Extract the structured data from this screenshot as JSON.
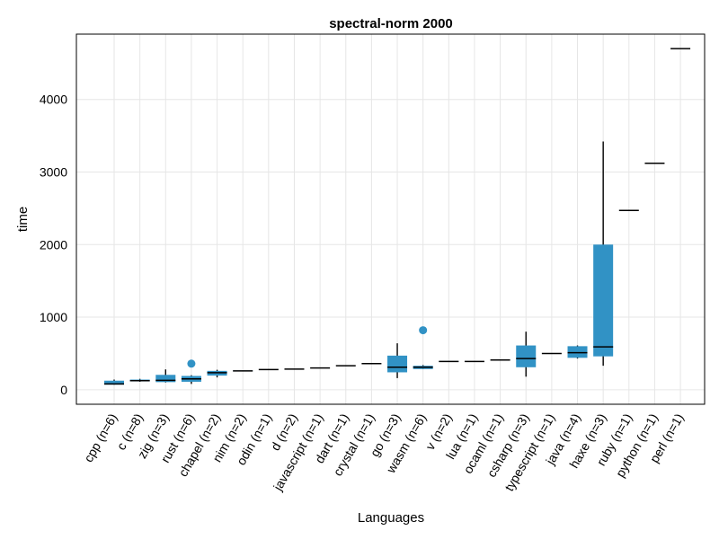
{
  "chart_data": {
    "type": "boxplot",
    "title": "spectral-norm 2000",
    "xlabel": "Languages",
    "ylabel": "time",
    "ylim": [
      -200,
      4900
    ],
    "yticks": [
      0,
      1000,
      2000,
      3000,
      4000
    ],
    "grid": true,
    "box_color": "#3192c5",
    "categories": [
      {
        "label": "cpp (n=6)",
        "min": 70,
        "q1": 70,
        "median": 80,
        "q3": 125,
        "max": 140,
        "outliers": []
      },
      {
        "label": "c (n=8)",
        "min": 110,
        "q1": 115,
        "median": 125,
        "q3": 140,
        "max": 150,
        "outliers": []
      },
      {
        "label": "zig (n=3)",
        "min": 100,
        "q1": 105,
        "median": 130,
        "q3": 205,
        "max": 280,
        "outliers": []
      },
      {
        "label": "rust (n=6)",
        "min": 80,
        "q1": 110,
        "median": 150,
        "q3": 190,
        "max": 200,
        "outliers": [
          360
        ]
      },
      {
        "label": "chapel (n=2)",
        "min": 170,
        "q1": 195,
        "median": 235,
        "q3": 260,
        "max": 275,
        "outliers": []
      },
      {
        "label": "nim (n=2)",
        "min": 255,
        "q1": 255,
        "median": 260,
        "q3": 265,
        "max": 265,
        "outliers": []
      },
      {
        "label": "odin (n=1)",
        "min": 278,
        "q1": 278,
        "median": 278,
        "q3": 278,
        "max": 278,
        "outliers": []
      },
      {
        "label": "d (n=2)",
        "min": 282,
        "q1": 282,
        "median": 285,
        "q3": 288,
        "max": 288,
        "outliers": []
      },
      {
        "label": "javascript (n=1)",
        "min": 300,
        "q1": 300,
        "median": 300,
        "q3": 300,
        "max": 300,
        "outliers": []
      },
      {
        "label": "dart (n=1)",
        "min": 330,
        "q1": 330,
        "median": 330,
        "q3": 330,
        "max": 330,
        "outliers": []
      },
      {
        "label": "crystal (n=1)",
        "min": 360,
        "q1": 360,
        "median": 360,
        "q3": 360,
        "max": 360,
        "outliers": []
      },
      {
        "label": "go (n=3)",
        "min": 160,
        "q1": 240,
        "median": 310,
        "q3": 470,
        "max": 640,
        "outliers": []
      },
      {
        "label": "wasm (n=6)",
        "min": 285,
        "q1": 285,
        "median": 310,
        "q3": 330,
        "max": 340,
        "outliers": [
          820
        ]
      },
      {
        "label": "v (n=2)",
        "min": 385,
        "q1": 385,
        "median": 390,
        "q3": 395,
        "max": 395,
        "outliers": []
      },
      {
        "label": "lua (n=1)",
        "min": 390,
        "q1": 390,
        "median": 390,
        "q3": 390,
        "max": 390,
        "outliers": []
      },
      {
        "label": "ocaml (n=1)",
        "min": 410,
        "q1": 410,
        "median": 410,
        "q3": 410,
        "max": 410,
        "outliers": []
      },
      {
        "label": "csharp (n=3)",
        "min": 180,
        "q1": 310,
        "median": 430,
        "q3": 610,
        "max": 800,
        "outliers": []
      },
      {
        "label": "typescript (n=1)",
        "min": 500,
        "q1": 500,
        "median": 500,
        "q3": 500,
        "max": 500,
        "outliers": []
      },
      {
        "label": "java (n=4)",
        "min": 430,
        "q1": 440,
        "median": 510,
        "q3": 600,
        "max": 610,
        "outliers": []
      },
      {
        "label": "haxe (n=3)",
        "min": 330,
        "q1": 460,
        "median": 590,
        "q3": 2000,
        "max": 3420,
        "outliers": []
      },
      {
        "label": "ruby (n=1)",
        "min": 2470,
        "q1": 2470,
        "median": 2470,
        "q3": 2470,
        "max": 2470,
        "outliers": []
      },
      {
        "label": "python (n=1)",
        "min": 3120,
        "q1": 3120,
        "median": 3120,
        "q3": 3120,
        "max": 3120,
        "outliers": []
      },
      {
        "label": "perl (n=1)",
        "min": 4700,
        "q1": 4700,
        "median": 4700,
        "q3": 4700,
        "max": 4700,
        "outliers": []
      }
    ]
  }
}
